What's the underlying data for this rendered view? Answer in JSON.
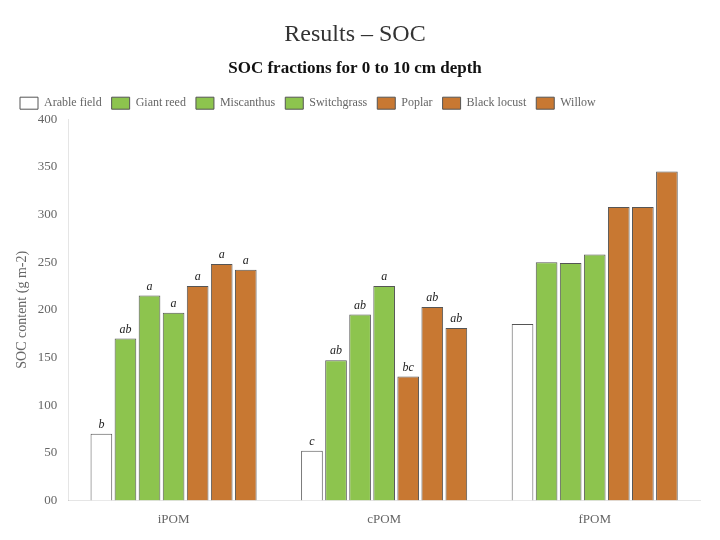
{
  "chart_data": {
    "type": "bar",
    "title": "Results – SOC",
    "subtitle": "SOC fractions for 0 to 10 cm depth",
    "ylabel": "SOC content (g m-2)",
    "categories": [
      "iPOM",
      "cPOM",
      "fPOM"
    ],
    "series": [
      {
        "name": "Arable field",
        "color": "#ffffff",
        "values": [
          70,
          52,
          185
        ],
        "annotations": [
          "b",
          "c",
          null
        ]
      },
      {
        "name": "Giant reed",
        "color": "#8dc44e",
        "values": [
          170,
          147,
          250
        ],
        "annotations": [
          "ab",
          "ab",
          null
        ]
      },
      {
        "name": "Miscanthus",
        "color": "#8dc44e",
        "values": [
          215,
          195,
          249
        ],
        "annotations": [
          "a",
          "ab",
          null
        ]
      },
      {
        "name": "Switchgrass",
        "color": "#8dc44e",
        "values": [
          197,
          225,
          258
        ],
        "annotations": [
          "a",
          "a",
          null
        ]
      },
      {
        "name": "Poplar",
        "color": "#c87832",
        "values": [
          225,
          130,
          308
        ],
        "annotations": [
          "a",
          "bc",
          null
        ]
      },
      {
        "name": "Black locust",
        "color": "#c87832",
        "values": [
          248,
          203,
          308
        ],
        "annotations": [
          "a",
          "ab",
          null
        ]
      },
      {
        "name": "Willow",
        "color": "#c87832",
        "values": [
          242,
          181,
          345
        ],
        "annotations": [
          "a",
          "ab",
          null
        ]
      }
    ],
    "ylim": [
      0,
      400
    ],
    "yticks": [
      {
        "value": 0,
        "label": "00"
      },
      50,
      100,
      150,
      200,
      250,
      300,
      350,
      400
    ],
    "grid": false,
    "legend": "upper left"
  }
}
